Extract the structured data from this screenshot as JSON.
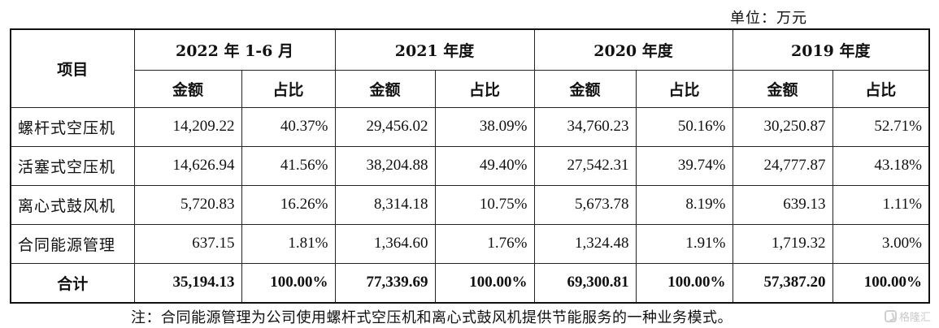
{
  "unit_label": "单位：万元",
  "table": {
    "item_header": "项目",
    "periods": [
      "2022 年 1-6 月",
      "2021 年度",
      "2020 年度",
      "2019 年度"
    ],
    "sub_headers": {
      "amount": "金额",
      "ratio": "占比"
    },
    "rows": [
      {
        "label": "螺杆式空压机",
        "cells": [
          "14,209.22",
          "40.37%",
          "29,456.02",
          "38.09%",
          "34,760.23",
          "50.16%",
          "30,250.87",
          "52.71%"
        ]
      },
      {
        "label": "活塞式空压机",
        "cells": [
          "14,626.94",
          "41.56%",
          "38,204.88",
          "49.40%",
          "27,542.31",
          "39.74%",
          "24,777.87",
          "43.18%"
        ]
      },
      {
        "label": "离心式鼓风机",
        "cells": [
          "5,720.83",
          "16.26%",
          "8,314.18",
          "10.75%",
          "5,673.78",
          "8.19%",
          "639.13",
          "1.11%"
        ]
      },
      {
        "label": "合同能源管理",
        "cells": [
          "637.15",
          "1.81%",
          "1,364.60",
          "1.76%",
          "1,324.48",
          "1.91%",
          "1,719.32",
          "3.00%"
        ]
      }
    ],
    "total": {
      "label": "合计",
      "cells": [
        "35,194.13",
        "100.00%",
        "77,339.69",
        "100.00%",
        "69,300.81",
        "100.00%",
        "57,387.20",
        "100.00%"
      ]
    }
  },
  "note": "注：合同能源管理为公司使用螺杆式空压机和离心式鼓风机提供节能服务的一种业务模式。",
  "watermark": {
    "text": "格隆汇",
    "icon": "gelonghui-logo-icon"
  }
}
